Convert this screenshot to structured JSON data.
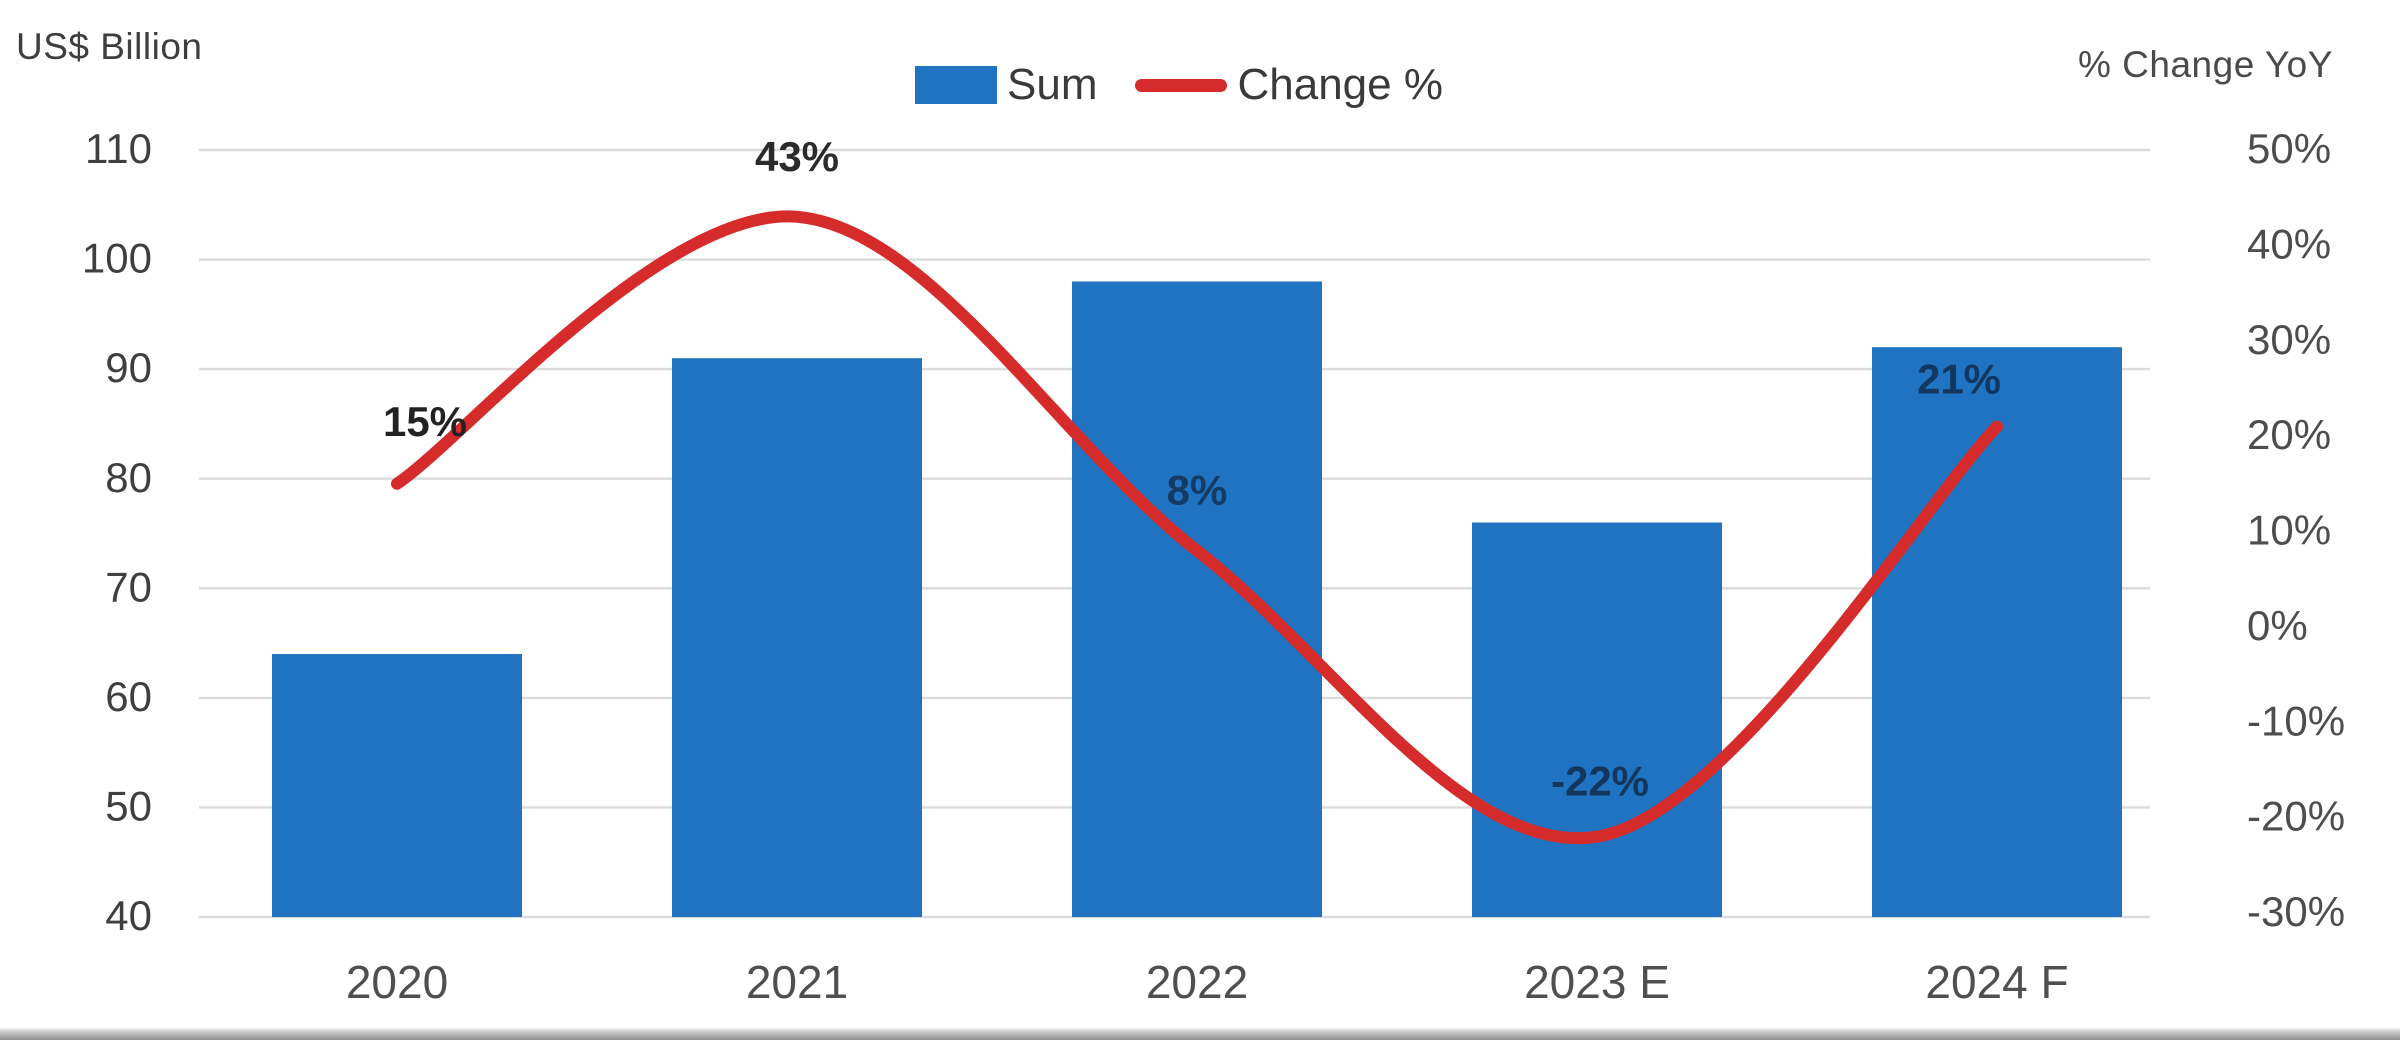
{
  "chart_data": {
    "type": "combo-bar-line",
    "categories": [
      "2020",
      "2021",
      "2022",
      "2023 E",
      "2024 F"
    ],
    "series": [
      {
        "name": "Sum",
        "type": "bar",
        "axis": "left",
        "values": [
          64,
          91,
          98,
          76,
          92
        ],
        "color": "#2073c0"
      },
      {
        "name": "Change %",
        "type": "line",
        "axis": "right",
        "values": [
          15,
          43,
          8,
          -22,
          21
        ],
        "labels": [
          "15%",
          "43%",
          "8%",
          "-22%",
          "21%"
        ],
        "label_colors": [
          "#222222",
          "#2b2b2b",
          "#133b63",
          "#12365c",
          "#123760"
        ],
        "label_offsets": [
          [
            28,
            -62
          ],
          [
            0,
            -60
          ],
          [
            0,
            -60
          ],
          [
            3,
            -55
          ],
          [
            -38,
            -47
          ]
        ],
        "color": "#d62b2b"
      }
    ],
    "left_axis": {
      "title": "US$ Billion",
      "min": 40,
      "max": 110,
      "step": 10,
      "ticks": [
        110,
        100,
        90,
        80,
        70,
        60,
        50,
        40
      ]
    },
    "right_axis": {
      "title": "% Change YoY",
      "min": -30,
      "max": 50,
      "step": 10,
      "ticks": [
        "50%",
        "40%",
        "30%",
        "20%",
        "10%",
        "0%",
        "-10%",
        "-20%",
        "-30%"
      ]
    },
    "grid": true,
    "legend_position": "top-center",
    "colors": {
      "grid": "#dbdbdb",
      "left_tick_text": "#3f3f3f",
      "right_tick_text": "#4d4d4d",
      "x_label_text": "#4f4f4f"
    }
  },
  "legend": {
    "items": [
      {
        "label": "Sum",
        "swatch": "bar-swatch",
        "color": "#2073c0"
      },
      {
        "label": "Change %",
        "swatch": "line-swatch",
        "color": "#d62b2b"
      }
    ]
  }
}
